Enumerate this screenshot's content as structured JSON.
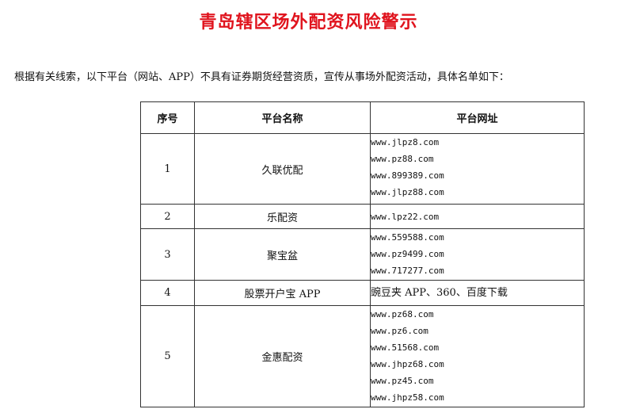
{
  "title": "青岛辖区场外配资风险警示",
  "intro": "根据有关线索，以下平台（网站、APP）不具有证券期货经营资质，宣传从事场外配资活动，具体名单如下：",
  "table": {
    "headers": [
      "序号",
      "平台名称",
      "平台网址"
    ],
    "rows": [
      {
        "no": "1",
        "name": "久联优配",
        "urls": [
          "www.jlpz8.com",
          "www.pz88.com",
          "www.899389.com",
          "www.jlpz88.com"
        ]
      },
      {
        "no": "2",
        "name": "乐配资",
        "urls": [
          "www.lpz22.com"
        ]
      },
      {
        "no": "3",
        "name": "聚宝盆",
        "urls": [
          "www.559588.com",
          "www.pz9499.com",
          "www.717277.com"
        ]
      },
      {
        "no": "4",
        "name": "股票开户宝 APP",
        "urls": [
          "豌豆夹 APP、360、百度下载"
        ]
      },
      {
        "no": "5",
        "name": "金惠配资",
        "urls": [
          "www.pz68.com",
          "www.pz6.com",
          "www.51568.com",
          "www.jhpz68.com",
          "www.pz45.com",
          "www.jhpz58.com"
        ]
      }
    ]
  }
}
